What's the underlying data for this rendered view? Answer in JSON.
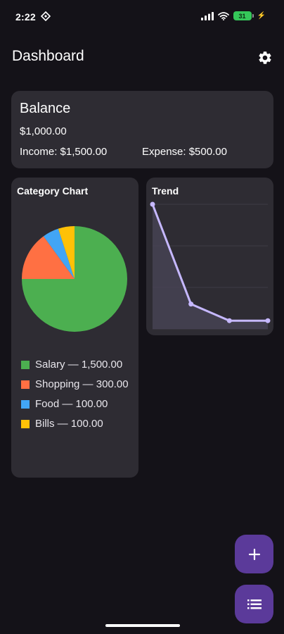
{
  "status_bar": {
    "time": "2:22",
    "battery_level": "31"
  },
  "app_bar": {
    "title": "Dashboard",
    "settings_icon": "gear-icon"
  },
  "balance": {
    "title": "Balance",
    "amount": "$1,000.00",
    "income": "Income: $1,500.00",
    "expense": "Expense: $500.00"
  },
  "category_chart": {
    "title": "Category Chart",
    "legend": [
      {
        "label": "Salary — 1,500.00",
        "color": "#4caf50"
      },
      {
        "label": "Shopping — 300.00",
        "color": "#ff7043"
      },
      {
        "label": "Food — 100.00",
        "color": "#42a5f5"
      },
      {
        "label": "Bills — 100.00",
        "color": "#ffc107"
      }
    ]
  },
  "trend": {
    "title": "Trend"
  },
  "fab": {
    "add_icon": "plus-icon",
    "list_icon": "list-icon"
  },
  "chart_data": [
    {
      "type": "pie",
      "title": "Category Chart",
      "categories": [
        "Salary",
        "Shopping",
        "Food",
        "Bills"
      ],
      "values": [
        1500,
        300,
        100,
        100
      ],
      "colors": [
        "#4caf50",
        "#ff7043",
        "#42a5f5",
        "#ffc107"
      ]
    },
    {
      "type": "line",
      "title": "Trend",
      "x": [
        0,
        1,
        2,
        3
      ],
      "values": [
        1500,
        300,
        100,
        100
      ],
      "color": "#c6b8ff",
      "grid": true
    }
  ]
}
